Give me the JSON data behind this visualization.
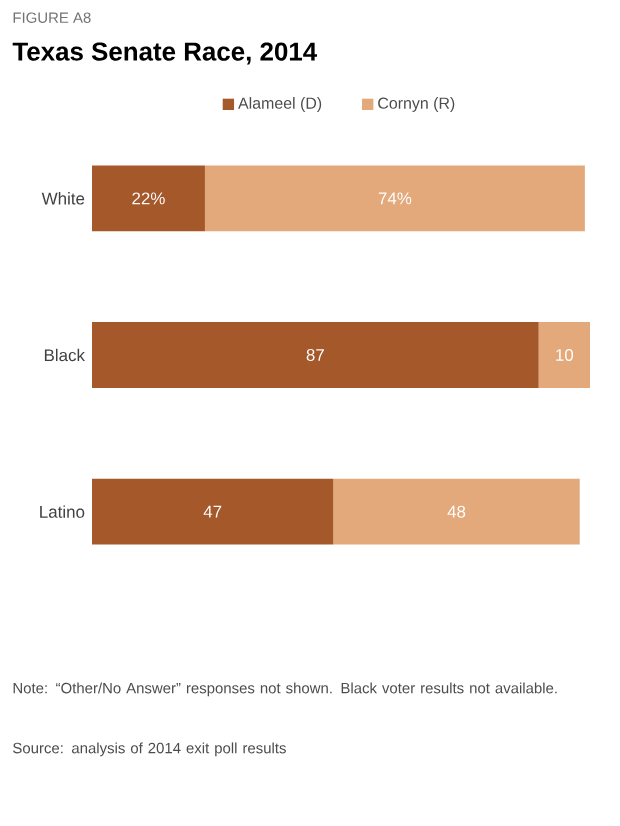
{
  "chart_data": {
    "type": "bar",
    "orientation": "horizontal",
    "stacked": true,
    "subtitle": "FIGURE A8",
    "title": "Texas Senate Race, 2014",
    "categories": [
      "White",
      "Black",
      "Latino"
    ],
    "legend": "top",
    "series": [
      {
        "name": "Alameel (D)",
        "color": "#a5582a",
        "values": [
          22,
          87,
          47
        ],
        "value_labels": [
          "22%",
          "87",
          "47"
        ]
      },
      {
        "name": "Cornyn (R)",
        "color": "#e3a97a",
        "values": [
          74,
          10,
          48
        ],
        "value_labels": [
          "74%",
          "10",
          "48"
        ]
      }
    ],
    "annotations": [
      "Note: “Other/No Answer” responses not shown. Black voter results not available.",
      "Source: analysis of 2014 exit poll results"
    ]
  }
}
